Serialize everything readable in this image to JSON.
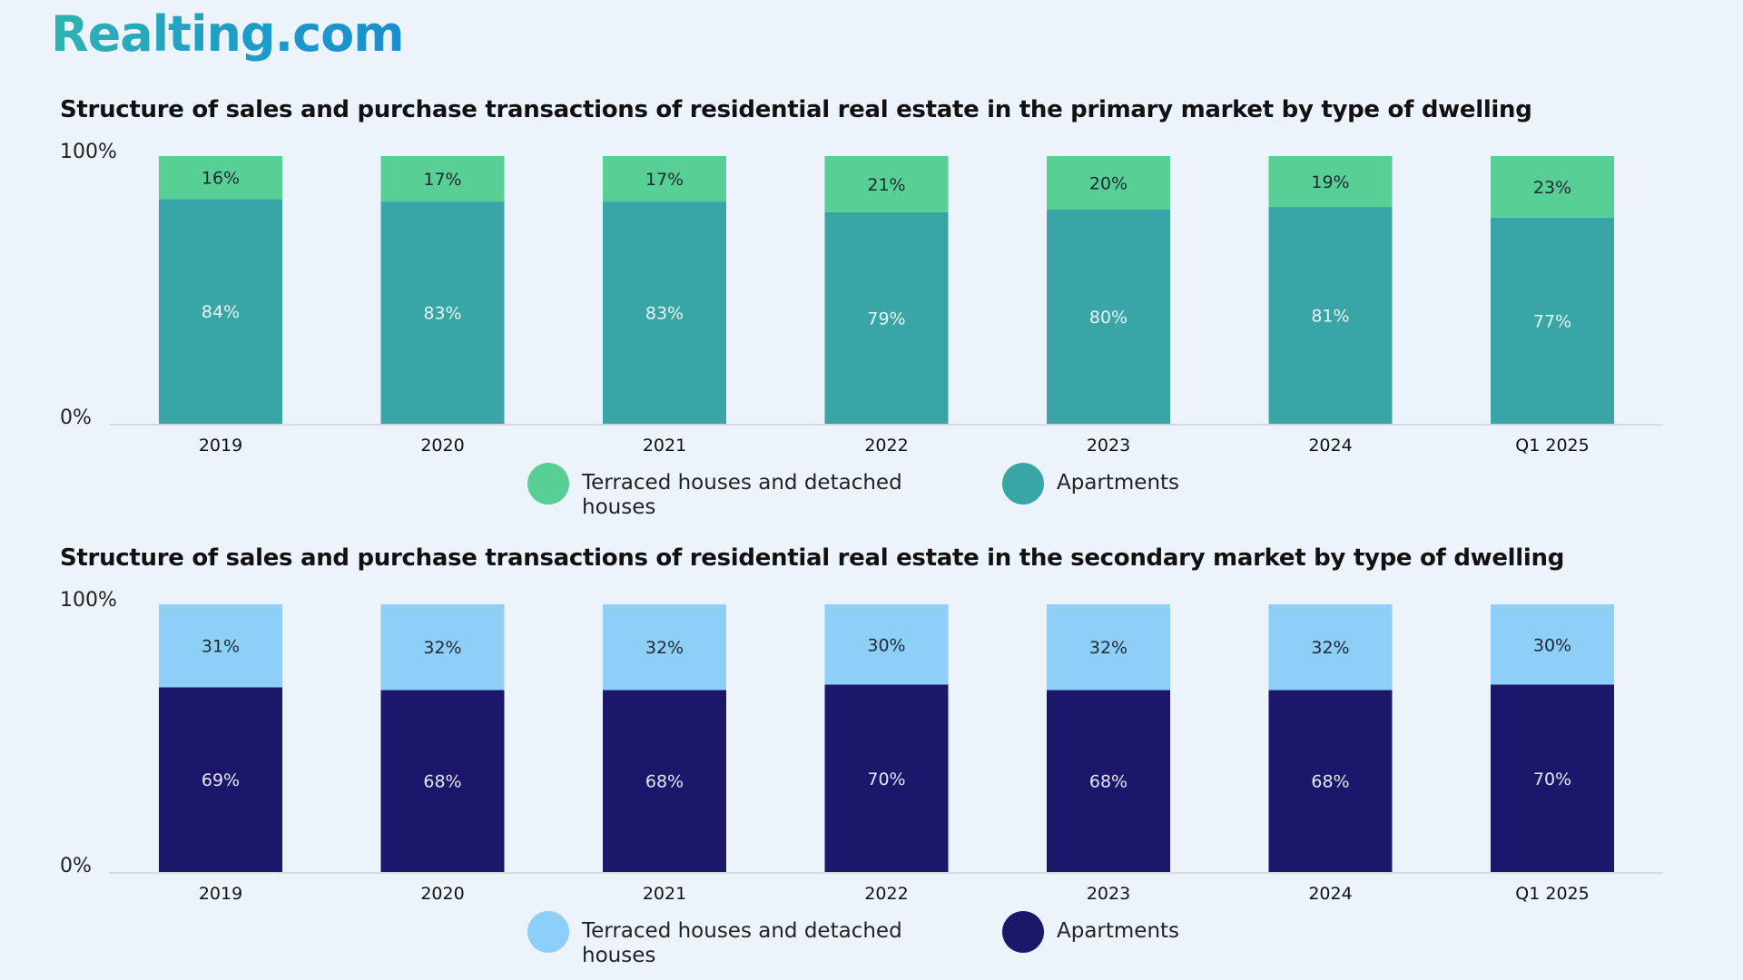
{
  "brand": "Realting.com",
  "chart_data": [
    {
      "type": "bar",
      "stacked": true,
      "title": "Structure of sales and purchase transactions of residential real estate in the primary market by type of dwelling",
      "categories": [
        "2019",
        "2020",
        "2021",
        "2022",
        "2023",
        "2024",
        "Q1 2025"
      ],
      "series": [
        {
          "name": "Apartments",
          "values": [
            84,
            83,
            83,
            79,
            80,
            81,
            77
          ],
          "color": "#3aa5a6",
          "label_color": "#e8f7f4"
        },
        {
          "name": "Terraced houses and detached houses",
          "values": [
            16,
            17,
            17,
            21,
            20,
            19,
            23
          ],
          "color": "#57cf95",
          "label_color": "#1e2a33"
        }
      ],
      "y_tick_labels": [
        "100%",
        "0%"
      ],
      "ylim": [
        0,
        100
      ],
      "legend": [
        "Terraced houses and detached",
        "houses",
        "Apartments"
      ],
      "legend_position": "bottom"
    },
    {
      "type": "bar",
      "stacked": true,
      "title": "Structure of sales and purchase transactions of residential real estate in the secondary market by type of dwelling",
      "categories": [
        "2019",
        "2020",
        "2021",
        "2022",
        "2023",
        "2024",
        "Q1 2025"
      ],
      "series": [
        {
          "name": "Apartments",
          "values": [
            69,
            68,
            68,
            70,
            68,
            68,
            70
          ],
          "color": "#1b186b",
          "label_color": "#e3e6f5"
        },
        {
          "name": "Terraced houses and detached houses",
          "values": [
            31,
            32,
            32,
            30,
            32,
            32,
            30
          ],
          "color": "#8ecff8",
          "label_color": "#1e2a33"
        }
      ],
      "y_tick_labels": [
        "100%",
        "0%"
      ],
      "ylim": [
        0,
        100
      ],
      "legend": [
        "Terraced houses and detached",
        "houses",
        "Apartments"
      ],
      "legend_position": "bottom"
    }
  ]
}
